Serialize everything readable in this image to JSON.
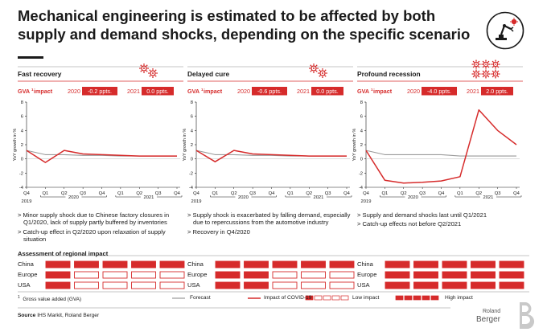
{
  "title": "Mechanical engineering is estimated to be affected by both supply and demand shocks, depending on the specific scenario",
  "colors": {
    "red": "#d62b2b",
    "gray": "#9a9a9a",
    "dark": "#1a1a1a"
  },
  "icons": [
    "virus-icon",
    "robot-arm-icon"
  ],
  "panels": [
    {
      "name": "Fast recovery",
      "gva_label": "GVA",
      "gva_sup": "1",
      "gva_suffix": " impact",
      "year_a": "2020",
      "value_a": "-0.2 ppts.",
      "year_b": "2021",
      "value_b": "0.0 ppts.",
      "bullets": [
        "Minor supply shock due to Chinese factory closures in Q1/2020, lack of supply partly buffered by inventories",
        "Catch-up effect in Q2/2020 upon relaxation of supply situation"
      ],
      "regional": {
        "China": "high",
        "Europe": "low",
        "USA": "low"
      }
    },
    {
      "name": "Delayed cure",
      "gva_label": "GVA",
      "gva_sup": "1",
      "gva_suffix": " impact",
      "year_a": "2020",
      "value_a": "-0.6 ppts.",
      "year_b": "2021",
      "value_b": "0.0 ppts.",
      "bullets": [
        "Supply shock is exacerbated by falling demand, especially due to repercussions from the automotive industry",
        "Recovery in Q4/2020"
      ],
      "regional": {
        "China": "high",
        "Europe": "mid",
        "USA": "mid"
      }
    },
    {
      "name": "Profound recession",
      "gva_label": "GVA",
      "gva_sup": "1",
      "gva_suffix": " impact",
      "year_a": "2020",
      "value_a": "-4.0 ppts.",
      "year_b": "2021",
      "value_b": "2.0 ppts.",
      "bullets": [
        "Supply and demand shocks last until Q1/2021",
        "Catch-up effects not before Q2/2021"
      ],
      "regional": {
        "China": "high",
        "Europe": "high",
        "USA": "high"
      }
    }
  ],
  "chart_data": [
    {
      "type": "line",
      "ylabel": "YoY growth in %",
      "x": [
        "Q4 2019",
        "Q1 2020",
        "Q2 2020",
        "Q3 2020",
        "Q4 2020",
        "Q1 2021",
        "Q2 2021",
        "Q3 2021",
        "Q4 2021"
      ],
      "tick_labels": [
        "Q4",
        "Q1",
        "Q2",
        "Q3",
        "Q4",
        "Q1",
        "Q2",
        "Q3",
        "Q4"
      ],
      "year_labels": [
        "2019",
        "2020",
        "2021"
      ],
      "yticks": [
        -4,
        -2,
        0,
        2,
        4,
        6,
        8
      ],
      "ylim": [
        -4,
        8
      ],
      "series": [
        {
          "name": "Forecast",
          "color": "#9a9a9a",
          "values": [
            1.2,
            0.6,
            0.6,
            0.5,
            0.5,
            0.4,
            0.4,
            0.4,
            0.4
          ]
        },
        {
          "name": "Impact of COVID-19",
          "color": "#d62b2b",
          "values": [
            1.2,
            -0.5,
            1.2,
            0.7,
            0.6,
            0.5,
            0.4,
            0.4,
            0.4
          ]
        }
      ]
    },
    {
      "type": "line",
      "ylabel": "YoY growth in %",
      "x": [
        "Q4 2019",
        "Q1 2020",
        "Q2 2020",
        "Q3 2020",
        "Q4 2020",
        "Q1 2021",
        "Q2 2021",
        "Q3 2021",
        "Q4 2021"
      ],
      "tick_labels": [
        "Q4",
        "Q1",
        "Q2",
        "Q3",
        "Q4",
        "Q1",
        "Q2",
        "Q3",
        "Q4"
      ],
      "year_labels": [
        "2019",
        "2020",
        "2021"
      ],
      "yticks": [
        -4,
        -2,
        0,
        2,
        4,
        6,
        8
      ],
      "ylim": [
        -4,
        8
      ],
      "series": [
        {
          "name": "Forecast",
          "color": "#9a9a9a",
          "values": [
            1.2,
            0.6,
            0.6,
            0.5,
            0.5,
            0.4,
            0.4,
            0.4,
            0.4
          ]
        },
        {
          "name": "Impact of COVID-19",
          "color": "#d62b2b",
          "values": [
            1.2,
            -0.4,
            1.2,
            0.7,
            0.6,
            0.5,
            0.4,
            0.4,
            0.4
          ]
        }
      ]
    },
    {
      "type": "line",
      "ylabel": "YoY growth in %",
      "x": [
        "Q4 2019",
        "Q1 2020",
        "Q2 2020",
        "Q3 2020",
        "Q4 2020",
        "Q1 2021",
        "Q2 2021",
        "Q3 2021",
        "Q4 2021"
      ],
      "tick_labels": [
        "Q4",
        "Q1",
        "Q2",
        "Q3",
        "Q4",
        "Q1",
        "Q2",
        "Q3",
        "Q4"
      ],
      "year_labels": [
        "2019",
        "2020",
        "2021"
      ],
      "yticks": [
        -4,
        -2,
        0,
        2,
        4,
        6,
        8
      ],
      "ylim": [
        -4,
        8
      ],
      "series": [
        {
          "name": "Forecast",
          "color": "#9a9a9a",
          "values": [
            1.2,
            0.6,
            0.6,
            0.6,
            0.6,
            0.4,
            0.4,
            0.4,
            0.4
          ]
        },
        {
          "name": "Impact of COVID-19",
          "color": "#d62b2b",
          "values": [
            1.2,
            -3.0,
            -3.4,
            -3.3,
            -3.1,
            -2.5,
            6.9,
            4.0,
            2.0
          ]
        }
      ]
    }
  ],
  "regional": {
    "heading": "Assessment of regional impact",
    "countries": [
      "China",
      "Europe",
      "USA"
    ]
  },
  "legend": {
    "footnote_sup": "1",
    "footnote": "Gross value added (GVA)",
    "forecast": "Forecast",
    "impact": "Impact of COVID-19",
    "low": "Low impact",
    "high": "High impact"
  },
  "source": {
    "label": "Source",
    "text": "IHS Markit, Roland Berger"
  },
  "brand": {
    "line1": "Roland",
    "line2": "Berger"
  }
}
